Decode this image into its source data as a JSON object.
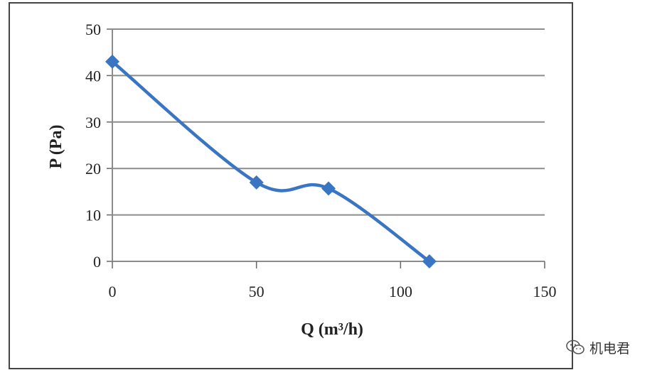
{
  "chart_data": {
    "type": "line",
    "xlabel": "Q (m³/h)",
    "ylabel": "P (Pa)",
    "xlim": [
      0,
      150
    ],
    "ylim": [
      0,
      50
    ],
    "x_ticks": [
      "0",
      "50",
      "100",
      "150"
    ],
    "y_ticks": [
      "0",
      "10",
      "20",
      "30",
      "40",
      "50"
    ],
    "grid": "horizontal",
    "legend": "none",
    "series": [
      {
        "x": [
          0,
          50,
          75,
          110
        ],
        "y": [
          43,
          17,
          15.7,
          0
        ],
        "color": "#3a75c4",
        "marker": "diamond",
        "smooth": true
      }
    ]
  },
  "watermark": {
    "text": "机电君",
    "icon": "wechat-chat-icon"
  }
}
